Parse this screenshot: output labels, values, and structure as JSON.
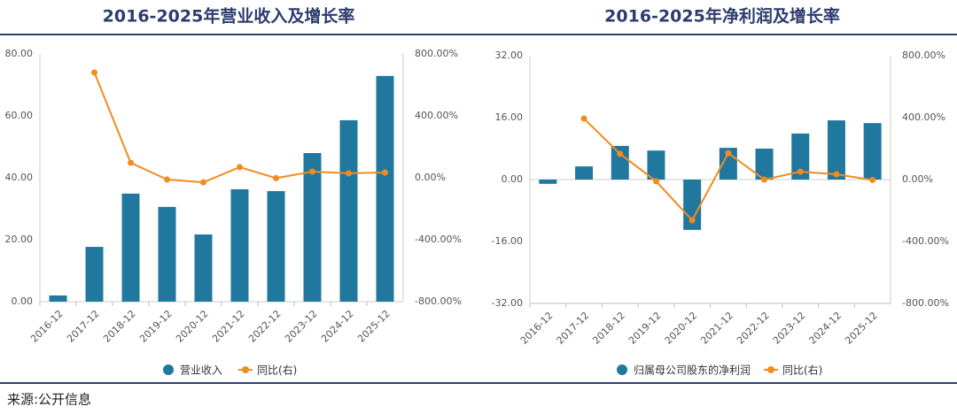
{
  "chart_data": [
    {
      "type": "bar_line",
      "title": "2016-2025年营业收入及增长率",
      "categories": [
        "2016-12",
        "2017-12",
        "2018-12",
        "2019-12",
        "2020-12",
        "2021-12",
        "2022-12",
        "2023-12",
        "2024-12",
        "2025-12"
      ],
      "series": [
        {
          "name": "营业收入",
          "type": "bar",
          "color": "#21789f",
          "values": [
            2.0,
            17.7,
            34.9,
            30.6,
            21.7,
            36.3,
            35.7,
            48.0,
            58.6,
            72.9
          ]
        },
        {
          "name": "同比(右)",
          "type": "line",
          "axis": "y2",
          "color": "#f28c1e",
          "values": [
            null,
            680,
            97,
            -11,
            -29,
            69,
            -2,
            40,
            29,
            34
          ]
        }
      ],
      "ylim": [
        0,
        80
      ],
      "yticks": [
        {
          "value": 0,
          "label": "0.00"
        },
        {
          "value": 20,
          "label": "20.00"
        },
        {
          "value": 40,
          "label": "40.00"
        },
        {
          "value": 60,
          "label": "60.00"
        },
        {
          "value": 80,
          "label": "80.00"
        }
      ],
      "y2lim": [
        -800,
        800
      ],
      "y2ticks": [
        {
          "value": -800,
          "label": "-800.00%"
        },
        {
          "value": -400,
          "label": "-400.00%"
        },
        {
          "value": 0,
          "label": "0.00%"
        },
        {
          "value": 400,
          "label": "400.00%"
        },
        {
          "value": 800,
          "label": "800.00%"
        }
      ],
      "grid": false
    },
    {
      "type": "bar_line",
      "title": "2016-2025年净利润及增长率",
      "categories": [
        "2016-12",
        "2017-12",
        "2018-12",
        "2019-12",
        "2020-12",
        "2021-12",
        "2022-12",
        "2023-12",
        "2024-12",
        "2025-12"
      ],
      "series": [
        {
          "name": "归属母公司股东的净利润",
          "type": "bar",
          "color": "#21789f",
          "values": [
            -1.1,
            3.4,
            8.7,
            7.5,
            -13.0,
            8.2,
            8.0,
            11.9,
            15.3,
            14.6
          ]
        },
        {
          "name": "同比(右)",
          "type": "line",
          "axis": "y2",
          "color": "#f28c1e",
          "values": [
            null,
            394,
            166,
            -11,
            -263,
            171,
            0,
            51,
            34,
            -3
          ]
        }
      ],
      "ylim": [
        -32,
        32
      ],
      "yticks": [
        {
          "value": -32,
          "label": "-32.00"
        },
        {
          "value": -16,
          "label": "-16.00"
        },
        {
          "value": 0,
          "label": "0.00"
        },
        {
          "value": 16,
          "label": "16.00"
        },
        {
          "value": 32,
          "label": "32.00"
        }
      ],
      "y2lim": [
        -800,
        800
      ],
      "y2ticks": [
        {
          "value": -800,
          "label": "-800.00%"
        },
        {
          "value": -400,
          "label": "-400.00%"
        },
        {
          "value": 0,
          "label": "0.00%"
        },
        {
          "value": 400,
          "label": "400.00%"
        },
        {
          "value": 800,
          "label": "800.00%"
        }
      ],
      "grid": false
    }
  ],
  "source": "来源:公开信息"
}
